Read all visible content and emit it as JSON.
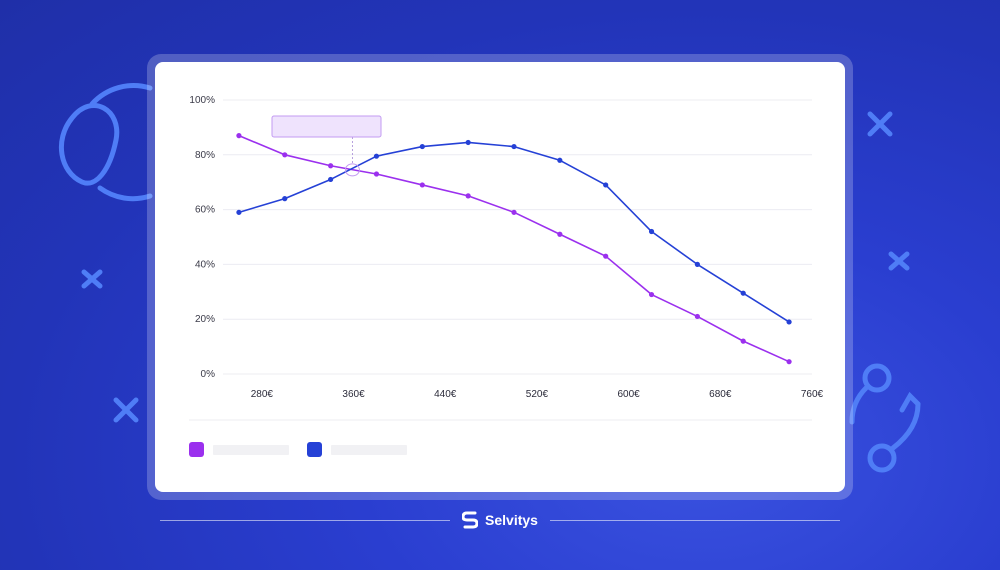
{
  "brand": {
    "name": "Selvitys",
    "logo_icon": "s-logo-icon"
  },
  "colors": {
    "background": "#2a3ed0",
    "series_1": "#9b30ee",
    "series_2": "#2541d6",
    "tooltip_fill": "#efe3fd",
    "tooltip_border": "#c39bf2"
  },
  "chart_data": {
    "type": "line",
    "title": "",
    "xlabel": "",
    "ylabel": "",
    "x": [
      260,
      300,
      340,
      380,
      420,
      460,
      500,
      540,
      580,
      620,
      660,
      700,
      740
    ],
    "x_ticks": [
      {
        "value": 280,
        "label": "280€"
      },
      {
        "value": 360,
        "label": "360€"
      },
      {
        "value": 440,
        "label": "440€"
      },
      {
        "value": 520,
        "label": "520€"
      },
      {
        "value": 600,
        "label": "600€"
      },
      {
        "value": 680,
        "label": "680€"
      },
      {
        "value": 760,
        "label": "760€"
      }
    ],
    "y_ticks": [
      {
        "value": 0,
        "label": "0%"
      },
      {
        "value": 20,
        "label": "20%"
      },
      {
        "value": 40,
        "label": "40%"
      },
      {
        "value": 60,
        "label": "60%"
      },
      {
        "value": 80,
        "label": "80%"
      },
      {
        "value": 100,
        "label": "100%"
      }
    ],
    "xlim": [
      240,
      760
    ],
    "ylim": [
      0,
      100
    ],
    "grid": true,
    "legend_position": "bottom-left",
    "series": [
      {
        "color": "#9b30ee",
        "values": [
          87,
          80,
          76,
          73,
          69,
          65,
          59,
          51,
          43,
          29,
          21,
          12,
          4.5
        ]
      },
      {
        "color": "#2541d6",
        "values": [
          59,
          64,
          71,
          79.5,
          83,
          84.5,
          83,
          78,
          69,
          52,
          40,
          29.5,
          19
        ]
      }
    ],
    "annotation": {
      "type": "tooltip",
      "x": 359,
      "y": 74.5
    }
  }
}
